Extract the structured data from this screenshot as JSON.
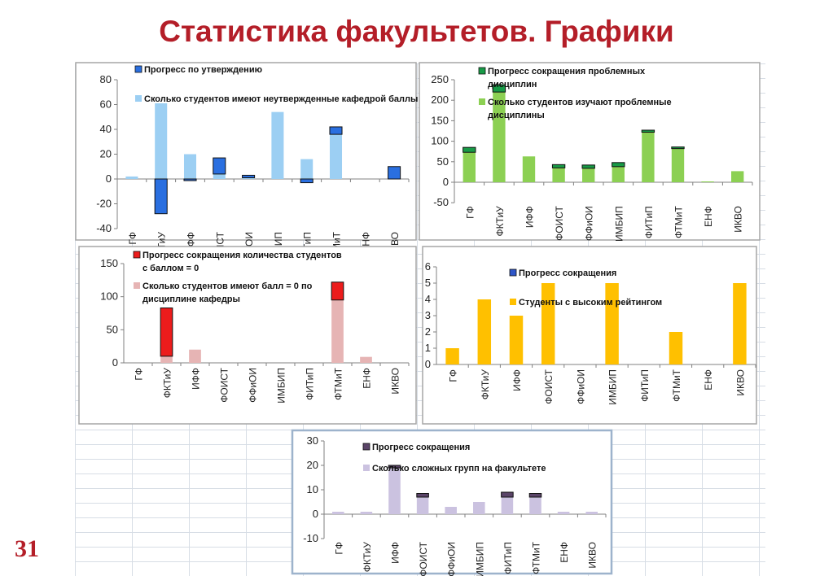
{
  "page": {
    "title": "Статистика факультетов. Графики",
    "number": "31"
  },
  "colors": {
    "title": "#b41e28",
    "c1_bar": "#9ccff3",
    "c1_prog": "#2a6fe0",
    "c2_bar": "#8cd053",
    "c2_prog": "#179a46",
    "c3_bar": "#e6b4b4",
    "c3_prog": "#ec1c1c",
    "c4_bar": "#ffc000",
    "c4_prog": "#2e55c8",
    "c5_bar": "#cbc2e0",
    "c5_prog": "#5a4468"
  },
  "chart_data": [
    {
      "type": "bar",
      "categories": [
        "ГФ",
        "ФКТиУ",
        "ИФФ",
        "ФОИСТ",
        "ФФиОИ",
        "ИМБИП",
        "ФИТиП",
        "ФТМиТ",
        "ЕНФ",
        "ИКВО"
      ],
      "ylim": [
        -40,
        80
      ],
      "yticks": [
        80,
        60,
        40,
        20,
        0,
        -20,
        -40
      ],
      "series": [
        {
          "name": "Сколько студентов имеют неутвержденные кафедрой баллы",
          "values": [
            2,
            61,
            20,
            4,
            1,
            54,
            16,
            36,
            0,
            0
          ]
        },
        {
          "name": "Прогресс по утверждению",
          "values": [
            0,
            -28,
            -1,
            13,
            2,
            0,
            -3,
            6,
            0,
            10
          ]
        }
      ]
    },
    {
      "type": "bar",
      "categories": [
        "ГФ",
        "ФКТиУ",
        "ИФФ",
        "ФОИСТ",
        "ФФиОИ",
        "ИМБИП",
        "ФИТиП",
        "ФТМиТ",
        "ЕНФ",
        "ИКВО"
      ],
      "ylim": [
        -50,
        250
      ],
      "yticks": [
        250,
        200,
        150,
        100,
        50,
        0,
        -50
      ],
      "series": [
        {
          "name": "Сколько студентов изучают проблемные дисциплины",
          "values": [
            73,
            220,
            63,
            35,
            34,
            38,
            122,
            86,
            2,
            27
          ]
        },
        {
          "name": "Прогресс сокращения проблемных дисциплин",
          "values": [
            12,
            18,
            0,
            8,
            8,
            10,
            5,
            -3,
            0,
            0
          ]
        }
      ]
    },
    {
      "type": "bar",
      "categories": [
        "ГФ",
        "ФКТиУ",
        "ИФФ",
        "ФОИСТ",
        "ФФиОИ",
        "ИМБИП",
        "ФИТиП",
        "ФТМиТ",
        "ЕНФ",
        "ИКВО"
      ],
      "ylim": [
        0,
        150
      ],
      "yticks": [
        150,
        100,
        50,
        0
      ],
      "series": [
        {
          "name": "Сколько студентов имеют балл = 0 по дисциплине кафедры",
          "values": [
            0,
            10,
            20,
            0,
            0,
            0,
            0,
            95,
            9,
            0
          ]
        },
        {
          "name": "Прогресс сокращения количества студентов с баллом = 0",
          "values": [
            0,
            73,
            0,
            0,
            0,
            0,
            0,
            27,
            0,
            0
          ]
        }
      ]
    },
    {
      "type": "bar",
      "categories": [
        "ГФ",
        "ФКТиУ",
        "ИФФ",
        "ФОИСТ",
        "ФФиОИ",
        "ИМБИП",
        "ФИТиП",
        "ФТМиТ",
        "ЕНФ",
        "ИКВО"
      ],
      "ylim": [
        0,
        6
      ],
      "yticks": [
        6,
        5,
        4,
        3,
        2,
        1,
        0
      ],
      "series": [
        {
          "name": "Студенты с высоким рейтингом",
          "values": [
            1,
            4,
            3,
            5,
            0,
            5,
            0,
            2,
            0,
            5
          ]
        },
        {
          "name": "Прогресс сокращения",
          "values": [
            0,
            0,
            0,
            0,
            0,
            0,
            0,
            0,
            0,
            0
          ]
        }
      ]
    },
    {
      "type": "bar",
      "categories": [
        "ГФ",
        "ФКТиУ",
        "ИФФ",
        "ФОИСТ",
        "ФФиОИ",
        "ИМБИП",
        "ФИТиП",
        "ФТМиТ",
        "ЕНФ",
        "ИКВО"
      ],
      "ylim": [
        -10,
        30
      ],
      "yticks": [
        30,
        20,
        10,
        0,
        -10
      ],
      "series": [
        {
          "name": "Сколько сложных групп на факультете",
          "values": [
            1,
            1,
            19,
            7,
            3,
            5,
            9,
            7,
            1,
            1
          ]
        },
        {
          "name": "Прогресс сокращения",
          "values": [
            0,
            0,
            1,
            1.5,
            0,
            0,
            -2,
            1.5,
            0,
            0
          ]
        }
      ]
    }
  ]
}
